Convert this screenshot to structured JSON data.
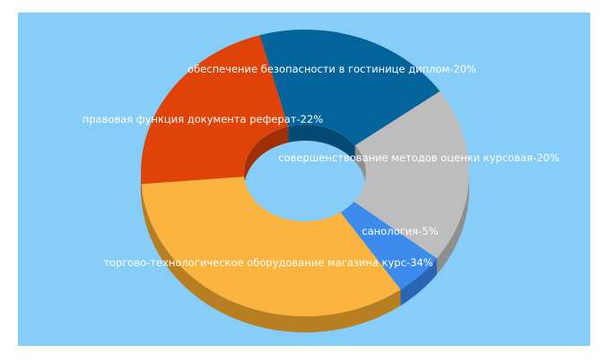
{
  "colors": {
    "background": "#ffffff",
    "panel": "#87cdfa"
  },
  "chart_data": {
    "type": "pie",
    "style": "3d-donut",
    "grid": false,
    "legend": "none",
    "slices": [
      {
        "label": "обеспечение безопасности в гостинице диплом-20%",
        "value": 20,
        "color": "#03649b",
        "dark": "#024a73"
      },
      {
        "label": "совершенствование методов оценки курсовая-20%",
        "value": 20,
        "color": "#bdbdbd",
        "dark": "#8e8e8e"
      },
      {
        "label": "санология-5%",
        "value": 5,
        "color": "#3d8ced",
        "dark": "#2a66b3"
      },
      {
        "label": "торгово-технологическое оборудование магазина курс-34%",
        "value": 34,
        "color": "#fbb440",
        "dark": "#b87f22"
      },
      {
        "label": "правовая функция документа реферат-22%",
        "value": 22,
        "color": "#e04308",
        "dark": "#a12f05"
      }
    ]
  }
}
